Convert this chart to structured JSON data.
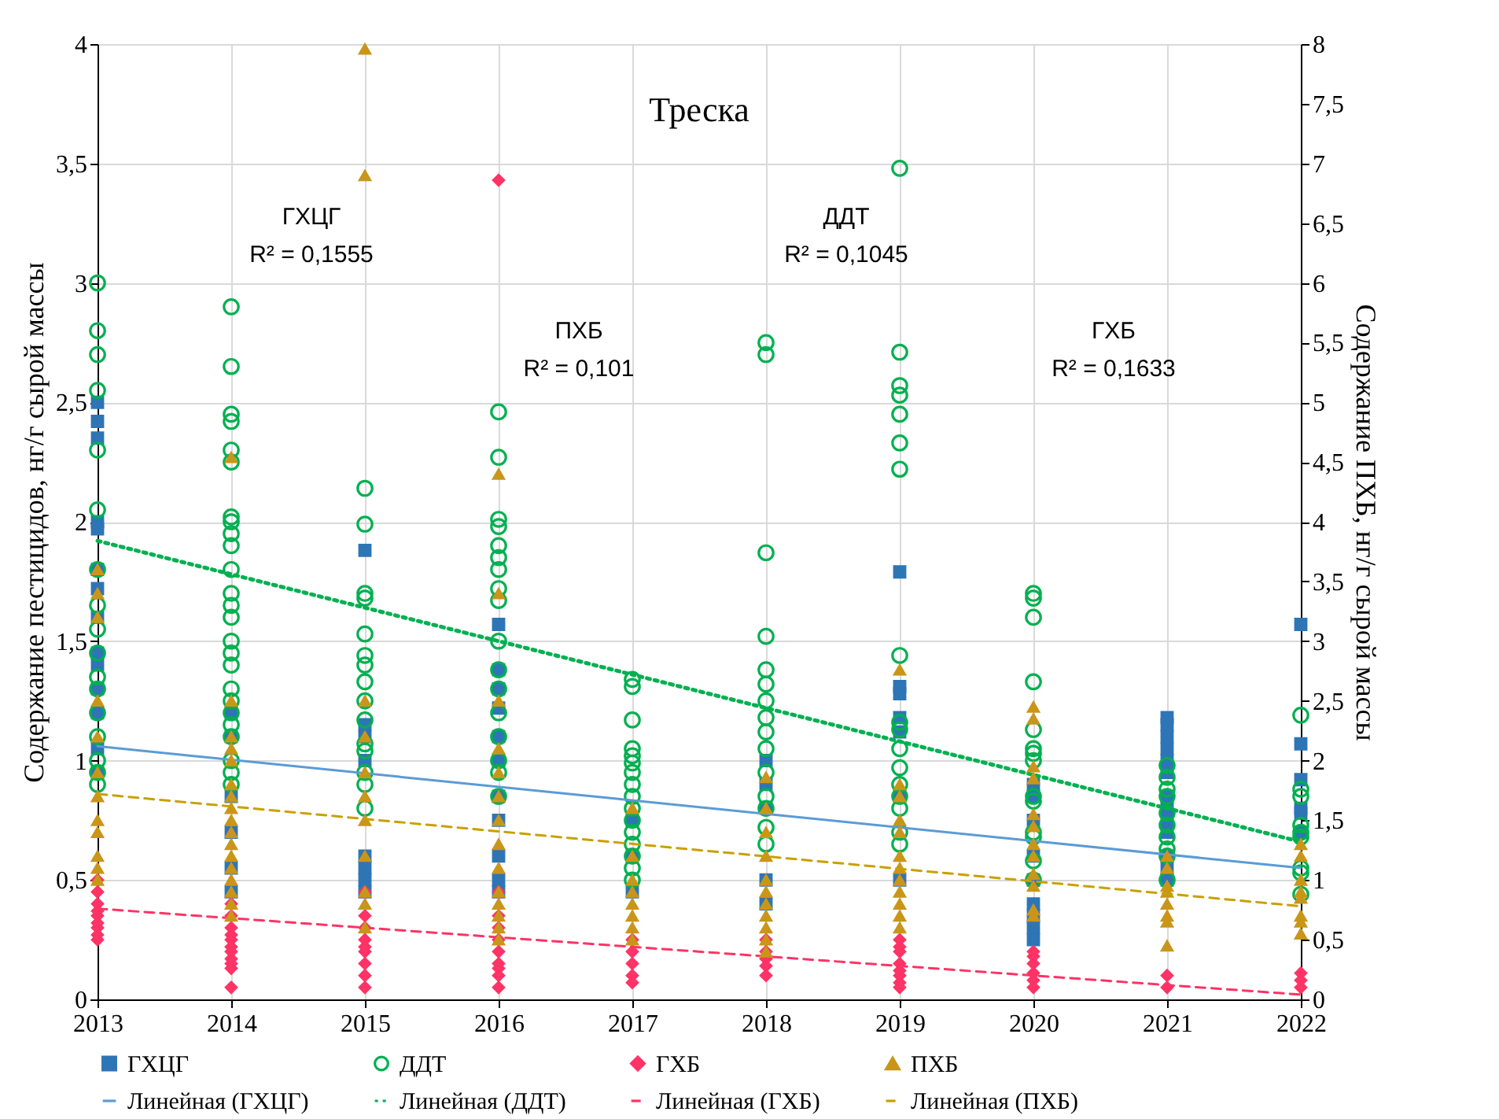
{
  "chart_data": {
    "type": "scatter",
    "title": "Треска",
    "xlabel": null,
    "ylabel": "Содержание пестицидов, нг/г сырой массы",
    "y2label": "Содержание ПХБ, нг/г сырой массы",
    "xlim": [
      2013,
      2022
    ],
    "xticks": [
      2013,
      2014,
      2015,
      2016,
      2017,
      2018,
      2019,
      2020,
      2021,
      2022
    ],
    "ylim": [
      0,
      4
    ],
    "yticks": [
      0,
      {
        "value": 0.5,
        "label": "0,5"
      },
      1,
      {
        "value": 1.5,
        "label": "1,5"
      },
      2,
      {
        "value": 2.5,
        "label": "2,5"
      },
      3,
      {
        "value": 3.5,
        "label": "3,5"
      },
      4
    ],
    "y2lim": [
      0,
      8
    ],
    "y2ticks": [
      0,
      {
        "value": 0.5,
        "label": "0,5"
      },
      1,
      {
        "value": 1.5,
        "label": "1,5"
      },
      2,
      {
        "value": 2.5,
        "label": "2,5"
      },
      3,
      {
        "value": 3.5,
        "label": "3,5"
      },
      4,
      {
        "value": 4.5,
        "label": "4,5"
      },
      5,
      {
        "value": 5.5,
        "label": "5,5"
      },
      6,
      {
        "value": 6.5,
        "label": "6,5"
      },
      7,
      {
        "value": 7.5,
        "label": "7,5"
      },
      8
    ],
    "grid": true,
    "legend": "bottom",
    "annotations": [
      "ГХЦГ\nR² = 0,1555",
      "ПХБ\nR² = 0,101",
      "ДДТ\nR² = 0,1045",
      "ГХБ\nR² = 0,1633"
    ],
    "series": [
      {
        "name": "ГХЦГ",
        "marker": "square",
        "color": "#2e75b6",
        "x": [
          2013,
          2013,
          2013,
          2013,
          2013,
          2013,
          2013,
          2013,
          2013,
          2013,
          2013,
          2013,
          2013,
          2013,
          2014,
          2014,
          2014,
          2014,
          2014,
          2014,
          2015,
          2015,
          2015,
          2015,
          2015,
          2015,
          2015,
          2015,
          2016,
          2016,
          2016,
          2016,
          2016,
          2016,
          2016,
          2016,
          2016,
          2016,
          2016,
          2017,
          2017,
          2017,
          2018,
          2018,
          2018,
          2018,
          2018,
          2019,
          2019,
          2019,
          2019,
          2019,
          2019,
          2019,
          2020,
          2020,
          2020,
          2020,
          2020,
          2020,
          2020,
          2020,
          2020,
          2021,
          2021,
          2021,
          2021,
          2021,
          2021,
          2021,
          2021,
          2021,
          2021,
          2021,
          2021,
          2021,
          2022,
          2022,
          2022,
          2022,
          2022,
          2022
        ],
        "values": [
          2.5,
          2.42,
          2.35,
          2.0,
          1.97,
          1.8,
          1.72,
          1.6,
          1.45,
          1.4,
          1.3,
          1.2,
          1.05,
          0.95,
          1.2,
          1.1,
          0.85,
          0.7,
          0.55,
          0.45,
          1.88,
          1.15,
          1.1,
          1.0,
          0.6,
          0.55,
          0.5,
          0.45,
          1.57,
          1.38,
          1.3,
          1.22,
          1.1,
          1.0,
          0.85,
          0.75,
          0.6,
          0.5,
          0.45,
          0.75,
          0.6,
          0.45,
          1.0,
          0.9,
          0.8,
          0.5,
          0.4,
          1.79,
          1.31,
          1.28,
          1.18,
          1.12,
          0.85,
          0.5,
          0.9,
          0.85,
          0.75,
          0.6,
          0.5,
          0.4,
          0.35,
          0.3,
          0.25,
          1.18,
          1.15,
          1.1,
          1.05,
          1.0,
          0.95,
          0.85,
          0.8,
          0.75,
          0.7,
          0.6,
          0.55,
          0.5,
          1.57,
          1.07,
          0.92,
          0.8,
          0.78,
          0.7
        ]
      },
      {
        "name": "ДДТ",
        "marker": "circle",
        "color": "#00b050",
        "x": [
          2013,
          2013,
          2013,
          2013,
          2013,
          2013,
          2013,
          2013,
          2013,
          2013,
          2013,
          2013,
          2013,
          2013,
          2013,
          2013,
          2013,
          2014,
          2014,
          2014,
          2014,
          2014,
          2014,
          2014,
          2014,
          2014,
          2014,
          2014,
          2014,
          2014,
          2014,
          2014,
          2014,
          2014,
          2014,
          2014,
          2014,
          2014,
          2014,
          2014,
          2014,
          2014,
          2015,
          2015,
          2015,
          2015,
          2015,
          2015,
          2015,
          2015,
          2015,
          2015,
          2015,
          2015,
          2015,
          2015,
          2015,
          2016,
          2016,
          2016,
          2016,
          2016,
          2016,
          2016,
          2016,
          2016,
          2016,
          2016,
          2016,
          2016,
          2016,
          2016,
          2016,
          2016,
          2017,
          2017,
          2017,
          2017,
          2017,
          2017,
          2017,
          2017,
          2017,
          2017,
          2017,
          2017,
          2017,
          2017,
          2017,
          2017,
          2018,
          2018,
          2018,
          2018,
          2018,
          2018,
          2018,
          2018,
          2018,
          2018,
          2018,
          2018,
          2018,
          2018,
          2018,
          2019,
          2019,
          2019,
          2019,
          2019,
          2019,
          2019,
          2019,
          2019,
          2019,
          2019,
          2019,
          2019,
          2019,
          2019,
          2019,
          2019,
          2020,
          2020,
          2020,
          2020,
          2020,
          2020,
          2020,
          2020,
          2020,
          2020,
          2020,
          2020,
          2020,
          2020,
          2021,
          2021,
          2021,
          2021,
          2021,
          2021,
          2021,
          2021,
          2021,
          2021,
          2022,
          2022,
          2022,
          2022,
          2022,
          2022,
          2022,
          2022,
          2022
        ],
        "values": [
          3.0,
          2.8,
          2.7,
          2.55,
          2.3,
          2.05,
          1.8,
          1.65,
          1.55,
          1.45,
          1.35,
          1.3,
          1.2,
          1.1,
          1.0,
          0.95,
          0.9,
          2.9,
          2.65,
          2.45,
          2.42,
          2.3,
          2.25,
          2.02,
          2.0,
          1.95,
          1.9,
          1.8,
          1.7,
          1.65,
          1.6,
          1.5,
          1.45,
          1.4,
          1.3,
          1.25,
          1.2,
          1.15,
          1.1,
          1.0,
          0.95,
          0.9,
          2.14,
          1.99,
          1.7,
          1.68,
          1.53,
          1.44,
          1.4,
          1.33,
          1.25,
          1.17,
          1.07,
          1.04,
          0.95,
          0.9,
          0.8,
          2.46,
          2.27,
          2.01,
          1.98,
          1.9,
          1.85,
          1.8,
          1.72,
          1.67,
          1.5,
          1.38,
          1.3,
          1.2,
          1.1,
          1.0,
          0.95,
          0.85,
          1.34,
          1.31,
          1.17,
          1.05,
          1.02,
          0.99,
          0.95,
          0.9,
          0.85,
          0.8,
          0.75,
          0.7,
          0.65,
          0.6,
          0.55,
          0.5,
          2.75,
          2.7,
          1.87,
          1.52,
          1.38,
          1.32,
          1.25,
          1.18,
          1.12,
          1.05,
          0.95,
          0.85,
          0.8,
          0.72,
          0.65,
          3.48,
          2.71,
          2.57,
          2.53,
          2.45,
          2.33,
          2.22,
          1.44,
          1.16,
          1.13,
          1.05,
          0.97,
          0.9,
          0.85,
          0.8,
          0.7,
          0.65,
          1.7,
          1.68,
          1.6,
          1.33,
          1.13,
          1.05,
          1.03,
          1.0,
          0.85,
          0.83,
          0.7,
          0.68,
          0.58,
          0.5,
          0.98,
          0.93,
          0.88,
          0.85,
          0.78,
          0.73,
          0.68,
          0.63,
          0.6,
          0.5,
          1.19,
          0.88,
          0.85,
          0.73,
          0.7,
          0.68,
          0.55,
          0.53,
          0.44
        ]
      },
      {
        "name": "ГХБ",
        "marker": "diamond",
        "color": "#ff3366",
        "x": [
          2013,
          2013,
          2013,
          2013,
          2013,
          2013,
          2013,
          2013,
          2013,
          2014,
          2014,
          2014,
          2014,
          2014,
          2014,
          2014,
          2014,
          2014,
          2014,
          2014,
          2015,
          2015,
          2015,
          2015,
          2015,
          2015,
          2015,
          2015,
          2015,
          2016,
          2016,
          2016,
          2016,
          2016,
          2016,
          2016,
          2016,
          2016,
          2016,
          2017,
          2017,
          2017,
          2017,
          2017,
          2018,
          2018,
          2018,
          2018,
          2018,
          2019,
          2019,
          2019,
          2019,
          2019,
          2019,
          2019,
          2019,
          2020,
          2020,
          2020,
          2020,
          2020,
          2020,
          2021,
          2021,
          2022,
          2022,
          2022
        ],
        "values": [
          0.5,
          0.45,
          0.4,
          0.37,
          0.35,
          0.32,
          0.3,
          0.27,
          0.25,
          0.4,
          0.35,
          0.3,
          0.27,
          0.25,
          0.22,
          0.2,
          0.17,
          0.15,
          0.13,
          0.05,
          0.45,
          0.35,
          0.3,
          0.25,
          0.22,
          0.2,
          0.15,
          0.1,
          0.05,
          3.43,
          0.45,
          0.35,
          0.3,
          0.25,
          0.2,
          0.15,
          0.13,
          0.1,
          0.05,
          0.25,
          0.2,
          0.15,
          0.1,
          0.07,
          0.25,
          0.2,
          0.17,
          0.14,
          0.1,
          0.25,
          0.22,
          0.2,
          0.15,
          0.12,
          0.1,
          0.07,
          0.05,
          0.2,
          0.18,
          0.15,
          0.11,
          0.08,
          0.05,
          0.1,
          0.05,
          0.11,
          0.08,
          0.05
        ]
      },
      {
        "name": "ПХБ",
        "marker": "triangle",
        "axis": "y2",
        "color": "#c9961a",
        "x": [
          2013,
          2013,
          2013,
          2013,
          2013,
          2013,
          2013,
          2013,
          2013,
          2013,
          2013,
          2013,
          2014,
          2014,
          2014,
          2014,
          2014,
          2014,
          2014,
          2014,
          2014,
          2014,
          2014,
          2014,
          2014,
          2014,
          2014,
          2014,
          2014,
          2015,
          2015,
          2015,
          2015,
          2015,
          2015,
          2015,
          2015,
          2015,
          2015,
          2015,
          2016,
          2016,
          2016,
          2016,
          2016,
          2016,
          2016,
          2016,
          2016,
          2016,
          2016,
          2016,
          2016,
          2016,
          2017,
          2017,
          2017,
          2017,
          2017,
          2017,
          2017,
          2017,
          2018,
          2018,
          2018,
          2018,
          2018,
          2018,
          2018,
          2018,
          2018,
          2018,
          2018,
          2019,
          2019,
          2019,
          2019,
          2019,
          2019,
          2019,
          2019,
          2019,
          2019,
          2019,
          2019,
          2020,
          2020,
          2020,
          2020,
          2020,
          2020,
          2020,
          2020,
          2020,
          2020,
          2020,
          2020,
          2021,
          2021,
          2021,
          2021,
          2021,
          2021,
          2021,
          2021,
          2022,
          2022,
          2022,
          2022,
          2022,
          2022,
          2022,
          2022
        ],
        "values": [
          3.6,
          3.4,
          3.2,
          2.5,
          2.2,
          1.9,
          1.7,
          1.5,
          1.4,
          1.2,
          1.1,
          1.0,
          4.54,
          2.5,
          2.2,
          2.1,
          2.0,
          1.8,
          1.7,
          1.6,
          1.5,
          1.4,
          1.3,
          1.2,
          1.1,
          1.0,
          0.9,
          0.8,
          0.7,
          7.96,
          6.9,
          2.5,
          2.2,
          1.9,
          1.7,
          1.5,
          1.2,
          0.9,
          0.8,
          0.6,
          4.4,
          3.4,
          2.5,
          2.1,
          1.9,
          1.7,
          1.5,
          1.3,
          1.1,
          0.9,
          0.8,
          0.7,
          0.6,
          0.5,
          1.6,
          1.2,
          1.0,
          0.9,
          0.8,
          0.7,
          0.6,
          0.5,
          1.86,
          1.6,
          1.4,
          1.2,
          1.0,
          0.9,
          0.8,
          0.7,
          0.6,
          0.5,
          0.4,
          2.76,
          1.8,
          1.7,
          1.5,
          1.4,
          1.2,
          1.1,
          1.0,
          0.9,
          0.8,
          0.7,
          0.6,
          2.45,
          2.35,
          1.95,
          1.85,
          1.55,
          1.45,
          1.3,
          1.2,
          1.05,
          0.95,
          0.75,
          0.7,
          1.2,
          1.1,
          0.95,
          0.9,
          0.8,
          0.7,
          0.65,
          0.45,
          1.3,
          1.2,
          1.0,
          0.9,
          0.85,
          0.7,
          0.65,
          0.55
        ]
      },
      {
        "name": "Линейная (ГХЦГ)",
        "type": "line",
        "marker": "none",
        "line_style": "solid",
        "color": "#5b9bd5",
        "x": [
          2013,
          2022
        ],
        "values": [
          1.06,
          0.55
        ]
      },
      {
        "name": "Линейная (ДДТ)",
        "type": "line",
        "marker": "none",
        "line_style": "dotted",
        "color": "#00b050",
        "x": [
          2013,
          2022
        ],
        "values": [
          1.92,
          0.66
        ]
      },
      {
        "name": "Линейная (ГХБ)",
        "type": "line",
        "marker": "none",
        "line_style": "dashed",
        "color": "#ff3366",
        "x": [
          2013,
          2022
        ],
        "values": [
          0.38,
          0.02
        ]
      },
      {
        "name": "Линейная (ПХБ)",
        "type": "line",
        "marker": "none",
        "line_style": "dashed",
        "axis": "y2",
        "color": "#c9a000",
        "x": [
          2013,
          2022
        ],
        "values": [
          1.72,
          0.78
        ]
      }
    ]
  }
}
